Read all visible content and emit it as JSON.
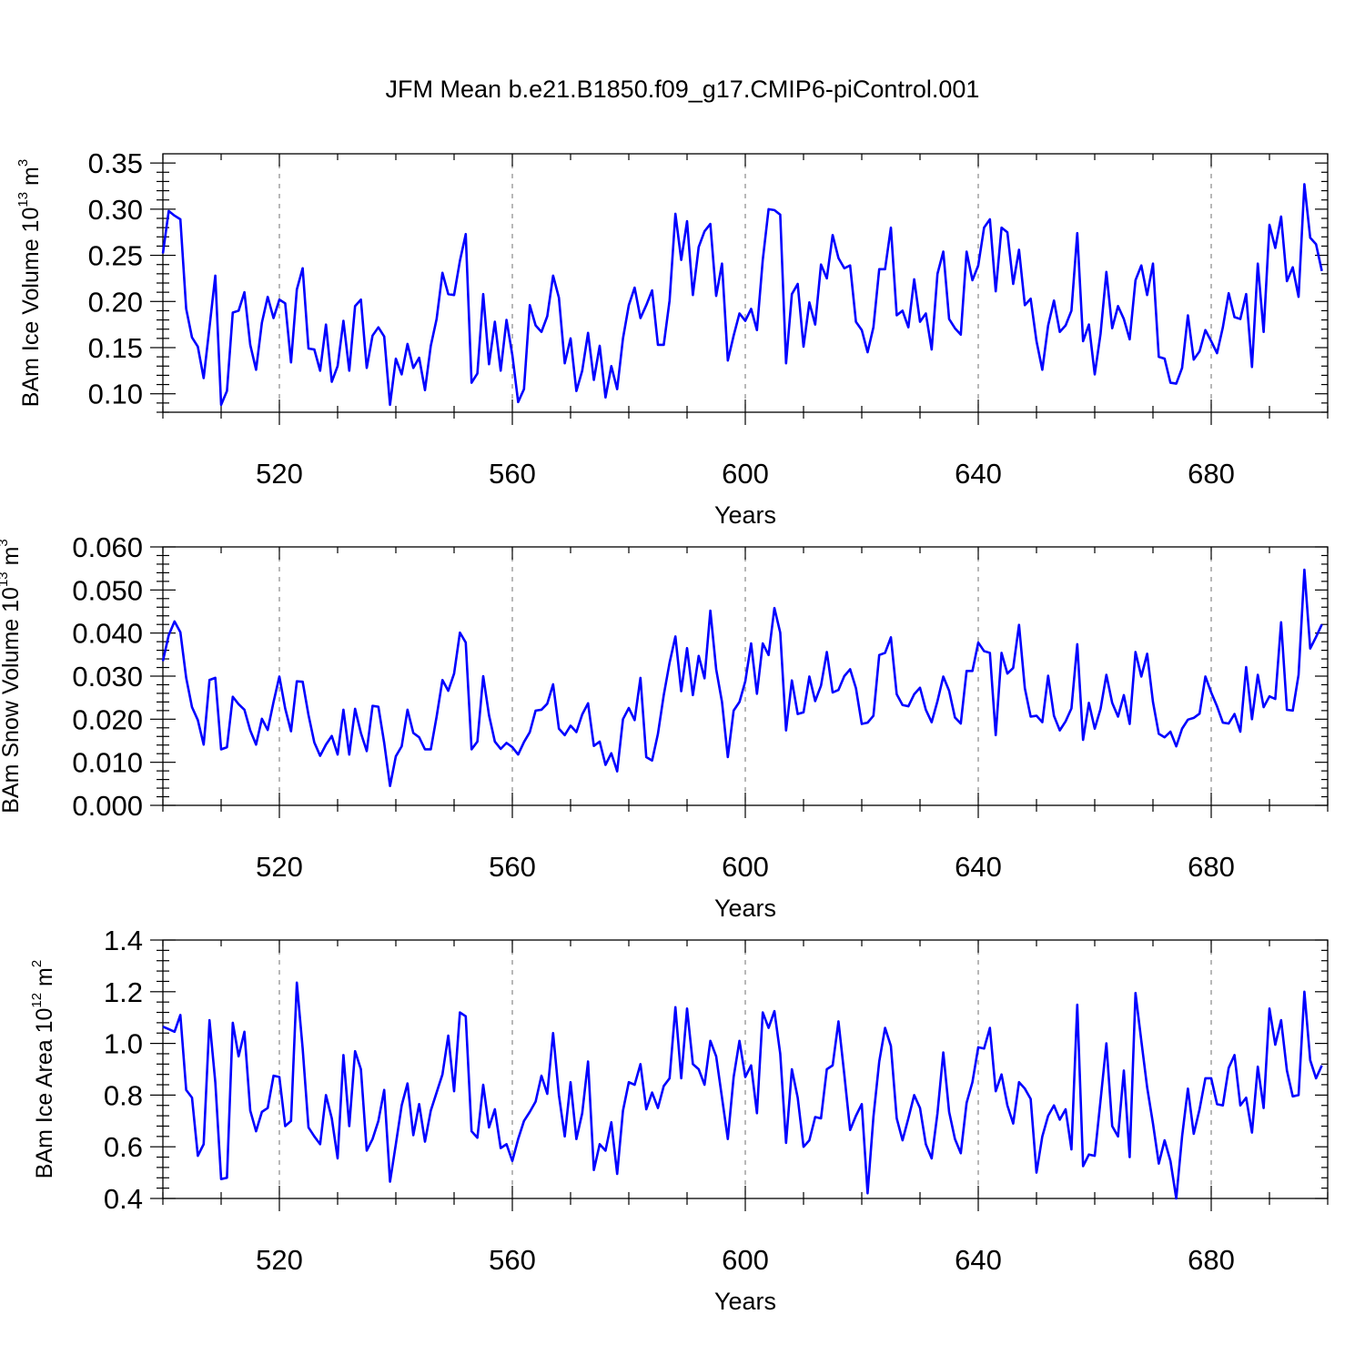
{
  "title": "JFM Mean b.e21.B1850.f09_g17.CMIP6-piControl.001",
  "chart_data": [
    {
      "type": "line",
      "ylabel_main": "BAm Ice Volume 10",
      "ylabel_exp": "13",
      "ylabel_unit": " m",
      "ylabel_unit_exp": "3",
      "xlabel": "Years",
      "color": "#0000ff",
      "xlim": [
        500,
        700
      ],
      "ylim": [
        0.08,
        0.36
      ],
      "xticks": [
        520,
        560,
        600,
        640,
        680
      ],
      "xtick_labels": [
        "520",
        "560",
        "600",
        "640",
        "680"
      ],
      "yticks": [
        0.1,
        0.15,
        0.2,
        0.25,
        0.3,
        0.35
      ],
      "ytick_labels": [
        "0.10",
        "0.15",
        "0.20",
        "0.25",
        "0.30",
        "0.35"
      ],
      "grid": "vertical dashed at major x ticks",
      "x_start": 500,
      "values": [
        0.252,
        0.298,
        0.293,
        0.289,
        0.192,
        0.161,
        0.151,
        0.117,
        0.172,
        0.228,
        0.088,
        0.103,
        0.188,
        0.19,
        0.21,
        0.153,
        0.126,
        0.177,
        0.205,
        0.182,
        0.202,
        0.198,
        0.134,
        0.213,
        0.236,
        0.149,
        0.148,
        0.125,
        0.175,
        0.113,
        0.13,
        0.179,
        0.125,
        0.195,
        0.202,
        0.128,
        0.163,
        0.172,
        0.162,
        0.088,
        0.138,
        0.121,
        0.154,
        0.128,
        0.139,
        0.104,
        0.152,
        0.181,
        0.231,
        0.208,
        0.207,
        0.244,
        0.273,
        0.112,
        0.122,
        0.208,
        0.132,
        0.178,
        0.125,
        0.18,
        0.142,
        0.091,
        0.105,
        0.196,
        0.174,
        0.167,
        0.184,
        0.228,
        0.204,
        0.133,
        0.16,
        0.103,
        0.125,
        0.166,
        0.115,
        0.152,
        0.096,
        0.13,
        0.105,
        0.16,
        0.196,
        0.215,
        0.182,
        0.196,
        0.212,
        0.153,
        0.153,
        0.201,
        0.295,
        0.245,
        0.287,
        0.207,
        0.259,
        0.276,
        0.284,
        0.206,
        0.241,
        0.136,
        0.163,
        0.187,
        0.179,
        0.192,
        0.169,
        0.245,
        0.3,
        0.299,
        0.294,
        0.133,
        0.208,
        0.219,
        0.151,
        0.199,
        0.175,
        0.24,
        0.225,
        0.272,
        0.247,
        0.236,
        0.239,
        0.178,
        0.169,
        0.145,
        0.172,
        0.235,
        0.235,
        0.28,
        0.185,
        0.19,
        0.172,
        0.224,
        0.178,
        0.187,
        0.148,
        0.23,
        0.254,
        0.181,
        0.171,
        0.164,
        0.254,
        0.223,
        0.239,
        0.28,
        0.289,
        0.211,
        0.28,
        0.275,
        0.219,
        0.256,
        0.196,
        0.203,
        0.157,
        0.126,
        0.174,
        0.201,
        0.167,
        0.174,
        0.19,
        0.274,
        0.157,
        0.175,
        0.121,
        0.165,
        0.232,
        0.171,
        0.195,
        0.181,
        0.159,
        0.223,
        0.239,
        0.207,
        0.241,
        0.14,
        0.138,
        0.112,
        0.111,
        0.128,
        0.185,
        0.137,
        0.146,
        0.169,
        0.157,
        0.144,
        0.172,
        0.209,
        0.183,
        0.181,
        0.208,
        0.129,
        0.241,
        0.167,
        0.283,
        0.258,
        0.292,
        0.222,
        0.237,
        0.205,
        0.327,
        0.269,
        0.262,
        0.233
      ]
    },
    {
      "type": "line",
      "ylabel_main": "BAm Snow Volume 10",
      "ylabel_exp": "13",
      "ylabel_unit": " m",
      "ylabel_unit_exp": "3",
      "xlabel": "Years",
      "color": "#0000ff",
      "xlim": [
        500,
        700
      ],
      "ylim": [
        0.0,
        0.06
      ],
      "xticks": [
        520,
        560,
        600,
        640,
        680
      ],
      "xtick_labels": [
        "520",
        "560",
        "600",
        "640",
        "680"
      ],
      "yticks": [
        0.0,
        0.01,
        0.02,
        0.03,
        0.04,
        0.05,
        0.06
      ],
      "ytick_labels": [
        "0.000",
        "0.010",
        "0.020",
        "0.030",
        "0.040",
        "0.050",
        "0.060"
      ],
      "grid": "vertical dashed at major x ticks",
      "x_start": 500,
      "values": [
        0.0335,
        0.0395,
        0.0427,
        0.0402,
        0.0296,
        0.0228,
        0.0198,
        0.0141,
        0.0291,
        0.0296,
        0.013,
        0.0135,
        0.0252,
        0.0235,
        0.0222,
        0.0174,
        0.0141,
        0.0201,
        0.0175,
        0.024,
        0.0299,
        0.0225,
        0.0172,
        0.0288,
        0.0287,
        0.021,
        0.0146,
        0.0115,
        0.0141,
        0.0161,
        0.0118,
        0.0222,
        0.0118,
        0.0224,
        0.0168,
        0.0126,
        0.0231,
        0.0229,
        0.0145,
        0.0045,
        0.0114,
        0.0137,
        0.0222,
        0.0168,
        0.0158,
        0.013,
        0.013,
        0.0206,
        0.0291,
        0.0266,
        0.0306,
        0.0401,
        0.0378,
        0.013,
        0.0148,
        0.03,
        0.0209,
        0.0148,
        0.0131,
        0.0145,
        0.0135,
        0.0118,
        0.0147,
        0.017,
        0.022,
        0.0222,
        0.0236,
        0.0281,
        0.0178,
        0.0163,
        0.0185,
        0.017,
        0.0211,
        0.0237,
        0.0138,
        0.0148,
        0.0094,
        0.0121,
        0.0079,
        0.02,
        0.0226,
        0.0198,
        0.0296,
        0.0112,
        0.0104,
        0.0166,
        0.0256,
        0.0331,
        0.0392,
        0.0265,
        0.0365,
        0.0256,
        0.0347,
        0.0295,
        0.0452,
        0.0316,
        0.024,
        0.0112,
        0.022,
        0.024,
        0.0288,
        0.0376,
        0.0259,
        0.0376,
        0.0349,
        0.0458,
        0.0401,
        0.0174,
        0.029,
        0.0212,
        0.0216,
        0.0299,
        0.0242,
        0.0278,
        0.0356,
        0.0262,
        0.0268,
        0.03,
        0.0316,
        0.0272,
        0.0189,
        0.0192,
        0.0208,
        0.0349,
        0.0354,
        0.039,
        0.0258,
        0.0233,
        0.023,
        0.0258,
        0.0273,
        0.0222,
        0.0193,
        0.0242,
        0.0299,
        0.0266,
        0.0204,
        0.019,
        0.0312,
        0.0312,
        0.0378,
        0.0358,
        0.0354,
        0.0163,
        0.0354,
        0.0306,
        0.0319,
        0.0419,
        0.0272,
        0.0206,
        0.0208,
        0.0193,
        0.0301,
        0.0208,
        0.0174,
        0.0195,
        0.0225,
        0.0374,
        0.0152,
        0.0238,
        0.0178,
        0.0224,
        0.0303,
        0.0238,
        0.0206,
        0.0256,
        0.0189,
        0.0356,
        0.0299,
        0.0352,
        0.024,
        0.0166,
        0.0158,
        0.0171,
        0.0137,
        0.0178,
        0.0199,
        0.0203,
        0.0213,
        0.0299,
        0.0262,
        0.023,
        0.0192,
        0.019,
        0.0212,
        0.0171,
        0.0321,
        0.02,
        0.0303,
        0.0228,
        0.0253,
        0.0247,
        0.0425,
        0.0222,
        0.022,
        0.0303,
        0.0547,
        0.0364,
        0.0391,
        0.042
      ]
    },
    {
      "type": "line",
      "ylabel_main": "BAm Ice Area 10",
      "ylabel_exp": "12",
      "ylabel_unit": " m",
      "ylabel_unit_exp": "2",
      "xlabel": "Years",
      "color": "#0000ff",
      "xlim": [
        500,
        700
      ],
      "ylim": [
        0.4,
        1.4
      ],
      "xticks": [
        520,
        560,
        600,
        640,
        680
      ],
      "xtick_labels": [
        "520",
        "560",
        "600",
        "640",
        "680"
      ],
      "yticks": [
        0.4,
        0.6,
        0.8,
        1.0,
        1.2,
        1.4
      ],
      "ytick_labels": [
        "0.4",
        "0.6",
        "0.8",
        "1.0",
        "1.2",
        "1.4"
      ],
      "grid": "vertical dashed at major x ticks",
      "x_start": 500,
      "values": [
        1.065,
        1.055,
        1.045,
        1.11,
        0.82,
        0.79,
        0.565,
        0.61,
        1.09,
        0.85,
        0.475,
        0.48,
        1.08,
        0.95,
        1.045,
        0.74,
        0.66,
        0.735,
        0.75,
        0.875,
        0.87,
        0.68,
        0.7,
        1.235,
        0.98,
        0.675,
        0.64,
        0.61,
        0.8,
        0.71,
        0.555,
        0.955,
        0.68,
        0.97,
        0.9,
        0.585,
        0.63,
        0.7,
        0.82,
        0.465,
        0.61,
        0.76,
        0.845,
        0.645,
        0.765,
        0.62,
        0.74,
        0.81,
        0.88,
        1.03,
        0.815,
        1.12,
        1.105,
        0.66,
        0.635,
        0.84,
        0.675,
        0.745,
        0.595,
        0.61,
        0.545,
        0.63,
        0.7,
        0.735,
        0.775,
        0.875,
        0.805,
        1.04,
        0.8,
        0.64,
        0.85,
        0.63,
        0.73,
        0.93,
        0.51,
        0.61,
        0.585,
        0.695,
        0.495,
        0.74,
        0.85,
        0.84,
        0.92,
        0.745,
        0.81,
        0.75,
        0.835,
        0.865,
        1.14,
        0.865,
        1.135,
        0.92,
        0.9,
        0.84,
        1.01,
        0.95,
        0.79,
        0.63,
        0.87,
        1.01,
        0.87,
        0.915,
        0.73,
        1.12,
        1.06,
        1.125,
        0.96,
        0.615,
        0.9,
        0.79,
        0.6,
        0.625,
        0.715,
        0.71,
        0.9,
        0.915,
        1.085,
        0.88,
        0.665,
        0.72,
        0.765,
        0.42,
        0.715,
        0.93,
        1.06,
        0.99,
        0.71,
        0.625,
        0.71,
        0.8,
        0.75,
        0.61,
        0.555,
        0.73,
        0.965,
        0.735,
        0.63,
        0.575,
        0.77,
        0.85,
        0.985,
        0.98,
        1.06,
        0.815,
        0.88,
        0.76,
        0.69,
        0.85,
        0.825,
        0.785,
        0.5,
        0.64,
        0.72,
        0.76,
        0.705,
        0.745,
        0.59,
        1.15,
        0.525,
        0.57,
        0.565,
        0.78,
        1.0,
        0.68,
        0.64,
        0.895,
        0.56,
        1.195,
        1.01,
        0.83,
        0.69,
        0.535,
        0.625,
        0.545,
        0.4,
        0.64,
        0.825,
        0.65,
        0.745,
        0.865,
        0.865,
        0.765,
        0.76,
        0.905,
        0.955,
        0.76,
        0.79,
        0.655,
        0.91,
        0.75,
        1.135,
        0.995,
        1.09,
        0.895,
        0.795,
        0.8,
        1.2,
        0.935,
        0.865,
        0.915
      ]
    }
  ]
}
